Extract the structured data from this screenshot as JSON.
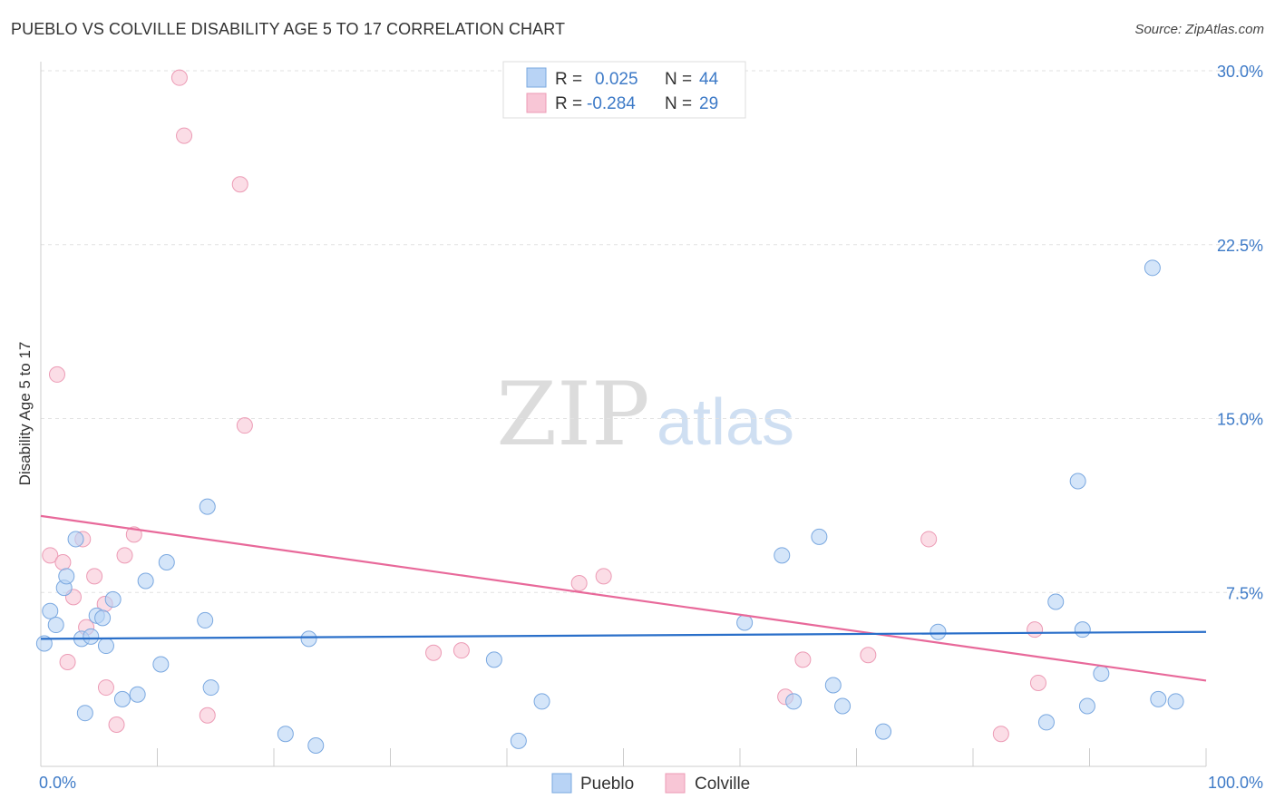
{
  "title": "PUEBLO VS COLVILLE DISABILITY AGE 5 TO 17 CORRELATION CHART",
  "source": "Source: ZipAtlas.com",
  "colors": {
    "pueblo_fill": "#b8d3f5",
    "pueblo_stroke": "#7aa8e0",
    "pueblo_line": "#2a6fc9",
    "colville_fill": "#f8c6d6",
    "colville_stroke": "#ec9bb5",
    "colville_line": "#e8699a",
    "value_text": "#3d7ac7"
  },
  "chart_data": {
    "type": "scatter",
    "title": "PUEBLO VS COLVILLE DISABILITY AGE 5 TO 17 CORRELATION CHART",
    "ylabel": "Disability Age 5 to 17",
    "xlabel": "",
    "xlim": [
      0,
      100
    ],
    "ylim": [
      0,
      30
    ],
    "x_tick_labels": [
      "0.0%",
      "100.0%"
    ],
    "y_ticks": [
      7.5,
      15.0,
      22.5,
      30.0
    ],
    "y_tick_labels": [
      "7.5%",
      "15.0%",
      "22.5%",
      "30.0%"
    ],
    "grid": true,
    "legend": {
      "position": "top-center",
      "entries": [
        {
          "r_label": "R =",
          "r_value": "0.025",
          "n_label": "N =",
          "n_value": "44"
        },
        {
          "r_label": "R =",
          "r_value": "-0.284",
          "n_label": "N =",
          "n_value": "29"
        }
      ]
    },
    "series": [
      {
        "name": "Pueblo",
        "trend": {
          "x": [
            0,
            100
          ],
          "y": [
            5.5,
            5.8
          ]
        },
        "points": [
          [
            0.3,
            5.3
          ],
          [
            0.8,
            6.7
          ],
          [
            1.3,
            6.1
          ],
          [
            2.0,
            7.7
          ],
          [
            2.2,
            8.2
          ],
          [
            3.0,
            9.8
          ],
          [
            3.5,
            5.5
          ],
          [
            3.8,
            2.3
          ],
          [
            4.3,
            5.6
          ],
          [
            4.8,
            6.5
          ],
          [
            5.3,
            6.4
          ],
          [
            5.6,
            5.2
          ],
          [
            6.2,
            7.2
          ],
          [
            7.0,
            2.9
          ],
          [
            8.3,
            3.1
          ],
          [
            9.0,
            8.0
          ],
          [
            10.3,
            4.4
          ],
          [
            10.8,
            8.8
          ],
          [
            14.1,
            6.3
          ],
          [
            14.3,
            11.2
          ],
          [
            14.6,
            3.4
          ],
          [
            21.0,
            1.4
          ],
          [
            23.0,
            5.5
          ],
          [
            23.6,
            0.9
          ],
          [
            38.9,
            4.6
          ],
          [
            41.0,
            1.1
          ],
          [
            43.0,
            2.8
          ],
          [
            60.4,
            6.2
          ],
          [
            63.6,
            9.1
          ],
          [
            64.6,
            2.8
          ],
          [
            66.8,
            9.9
          ],
          [
            68.0,
            3.5
          ],
          [
            68.8,
            2.6
          ],
          [
            72.3,
            1.5
          ],
          [
            77.0,
            5.8
          ],
          [
            86.3,
            1.9
          ],
          [
            87.1,
            7.1
          ],
          [
            89.0,
            12.3
          ],
          [
            89.4,
            5.9
          ],
          [
            89.8,
            2.6
          ],
          [
            91.0,
            4.0
          ],
          [
            95.4,
            21.5
          ],
          [
            95.9,
            2.9
          ],
          [
            97.4,
            2.8
          ]
        ]
      },
      {
        "name": "Colville",
        "trend": {
          "x": [
            0,
            100
          ],
          "y": [
            10.8,
            3.7
          ]
        },
        "points": [
          [
            0.8,
            9.1
          ],
          [
            1.4,
            16.9
          ],
          [
            1.9,
            8.8
          ],
          [
            2.3,
            4.5
          ],
          [
            2.8,
            7.3
          ],
          [
            3.6,
            9.8
          ],
          [
            3.9,
            6.0
          ],
          [
            4.6,
            8.2
          ],
          [
            5.5,
            7.0
          ],
          [
            5.6,
            3.4
          ],
          [
            6.5,
            1.8
          ],
          [
            7.2,
            9.1
          ],
          [
            8.0,
            10.0
          ],
          [
            11.9,
            29.7
          ],
          [
            12.3,
            27.2
          ],
          [
            14.3,
            2.2
          ],
          [
            17.1,
            25.1
          ],
          [
            17.5,
            14.7
          ],
          [
            33.7,
            4.9
          ],
          [
            36.1,
            5.0
          ],
          [
            46.2,
            7.9
          ],
          [
            48.3,
            8.2
          ],
          [
            63.9,
            3.0
          ],
          [
            65.4,
            4.6
          ],
          [
            71.0,
            4.8
          ],
          [
            76.2,
            9.8
          ],
          [
            82.4,
            1.4
          ],
          [
            85.3,
            5.9
          ],
          [
            85.6,
            3.6
          ]
        ]
      }
    ]
  },
  "bottom_legend": [
    {
      "label": "Pueblo"
    },
    {
      "label": "Colville"
    }
  ],
  "watermark": {
    "zip": "ZIP",
    "atlas": "atlas"
  }
}
